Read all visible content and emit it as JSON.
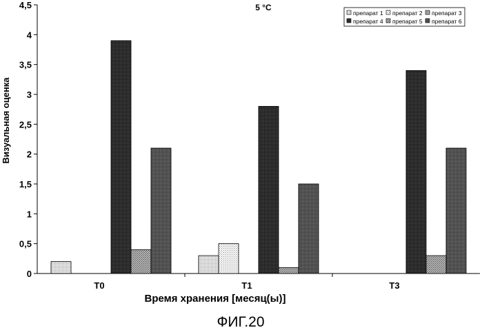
{
  "figure_label": "ФИГ.20",
  "chart_data": {
    "type": "bar",
    "title": "5 °C",
    "xlabel": "Время хранения [месяц(ы)]",
    "ylabel": "Визуальная оценка",
    "ylim": [
      0,
      4.5
    ],
    "ytick_labels": [
      "0",
      "0,5",
      "1",
      "1,5",
      "2",
      "2,5",
      "3",
      "3,5",
      "4",
      "4,5"
    ],
    "yticks": [
      0,
      0.5,
      1,
      1.5,
      2,
      2.5,
      3,
      3.5,
      4,
      4.5
    ],
    "categories": [
      "T0",
      "T1",
      "T3"
    ],
    "grid": false,
    "legend_position": "top-right",
    "series": [
      {
        "name": "препарат 1",
        "values": [
          0.2,
          0.3,
          0
        ],
        "color": "#e6e6e6"
      },
      {
        "name": "препарат 2",
        "values": [
          0,
          0.5,
          0
        ],
        "color": "#d4d4d4"
      },
      {
        "name": "препарат 3",
        "values": [
          0,
          0,
          0
        ],
        "color": "#9a9a9a"
      },
      {
        "name": "препарат 4",
        "values": [
          3.9,
          2.8,
          3.4
        ],
        "color": "#2b2b2b"
      },
      {
        "name": "препарат 5",
        "values": [
          0.4,
          0.1,
          0.3
        ],
        "color": "#b8b8b8"
      },
      {
        "name": "препарат 6",
        "values": [
          2.1,
          1.5,
          2.1
        ],
        "color": "#5e5e5e"
      }
    ]
  }
}
